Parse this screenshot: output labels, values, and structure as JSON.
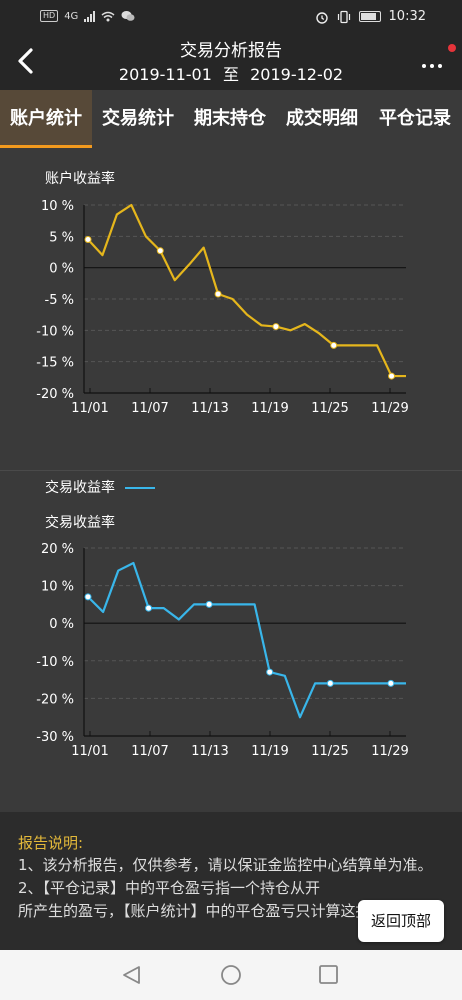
{
  "statusbar": {
    "left_badges": [
      "HD",
      "4G"
    ],
    "time": "10:32"
  },
  "header": {
    "title": "交易分析报告",
    "date_from": "2019-11-01",
    "date_sep": "至",
    "date_to": "2019-12-02",
    "icons": [
      "back-arrow-icon",
      "more-icon"
    ],
    "notification_dot_color": "#e5343a"
  },
  "tabs": [
    {
      "label": "账户统计",
      "active": true
    },
    {
      "label": "交易统计",
      "active": false
    },
    {
      "label": "期末持仓",
      "active": false
    },
    {
      "label": "成交明细",
      "active": false
    },
    {
      "label": "平仓记录",
      "active": false
    }
  ],
  "colors": {
    "accent": "#f39a1e",
    "account_series": "#e5b61c",
    "trade_series": "#39b6ea",
    "notes_title": "#e3b93a"
  },
  "chart_data": [
    {
      "type": "line",
      "title": "账户收益率",
      "x_ticks": [
        "11/01",
        "11/07",
        "11/13",
        "11/19",
        "11/25",
        "11/29"
      ],
      "y_ticks": [
        "10 %",
        "5 %",
        "0 %",
        "-5 %",
        "-10 %",
        "-15 %",
        "-20 %"
      ],
      "ylim": [
        -20,
        10
      ],
      "series": [
        {
          "values": [
            4.5,
            2,
            8.5,
            10,
            5,
            2.7,
            -2,
            0.5,
            3.2,
            -4.2,
            -5,
            -7.5,
            -9.2,
            -9.4,
            -10,
            -9,
            -10.5,
            -12.4,
            -12.4,
            -12.4,
            -12.4,
            -17.3,
            -17.3
          ],
          "markers": [
            0,
            5,
            9,
            13,
            17,
            21
          ]
        }
      ],
      "grid": "horizontal-dashed"
    },
    {
      "type": "line",
      "title": "交易收益率",
      "legend_label": "交易收益率",
      "x_ticks": [
        "11/01",
        "11/07",
        "11/13",
        "11/19",
        "11/25",
        "11/29"
      ],
      "y_ticks": [
        "20 %",
        "10 %",
        "0 %",
        "-10 %",
        "-20 %",
        "-30 %"
      ],
      "ylim": [
        -30,
        20
      ],
      "series": [
        {
          "values": [
            7,
            3,
            14,
            16,
            4,
            4,
            1,
            5,
            5,
            5,
            5,
            5,
            -13,
            -14,
            -25,
            -16,
            -16,
            -16,
            -16,
            -16,
            -16,
            -16
          ],
          "markers": [
            0,
            4,
            8,
            12,
            16,
            20
          ]
        }
      ],
      "grid": "horizontal-dashed"
    }
  ],
  "notes": {
    "title": "报告说明:",
    "lines": [
      "1、该分析报告，仅供参考，请以保证金监控中心结算单为准。",
      "2、【平仓记录】中的平仓盈亏指一个持仓从开",
      "所产生的盈亏，【账户统计】中的平仓盈亏只计算这报"
    ]
  },
  "back_to_top": "返回顶部"
}
